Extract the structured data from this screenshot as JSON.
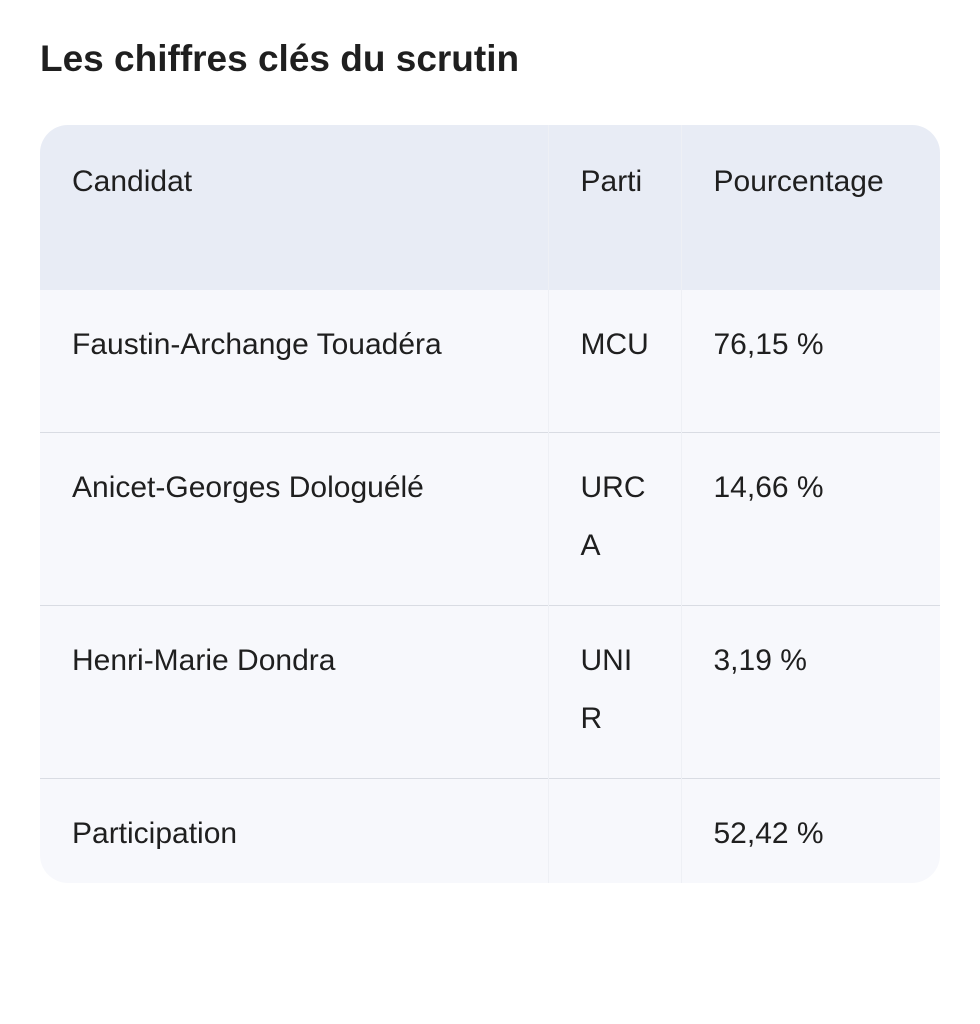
{
  "title": "Les chiffres clés du scrutin",
  "table": {
    "headers": [
      "Candidat",
      "Parti",
      "Pourcentage"
    ],
    "rows": [
      [
        "Faustin-Archange Touadéra",
        "MCU",
        "76,15 %"
      ],
      [
        "Anicet-Georges Dologuélé",
        "URCA",
        "14,66 %"
      ],
      [
        "Henri-Marie Dondra",
        "UNIR",
        "3,19 %"
      ],
      [
        "Participation",
        "",
        "52,42 %"
      ]
    ]
  }
}
